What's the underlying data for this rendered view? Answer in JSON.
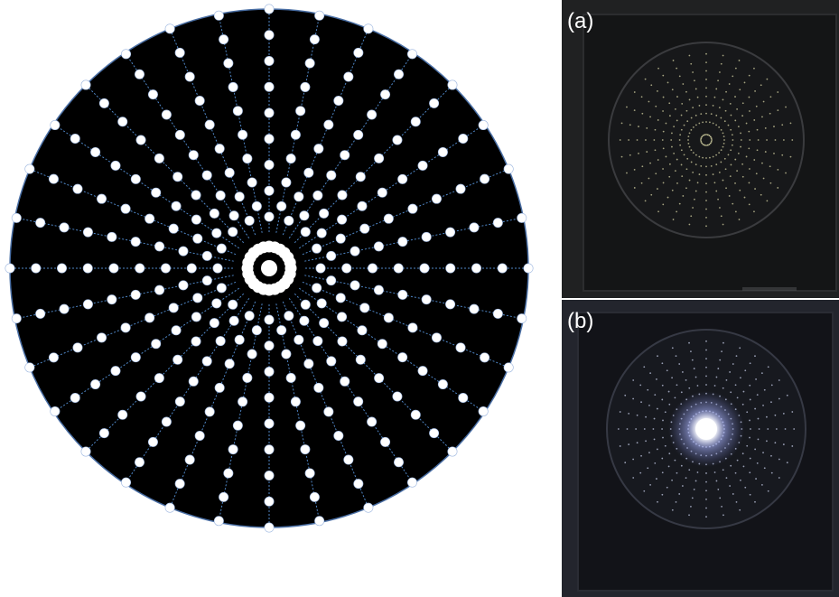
{
  "diagram": {
    "title": "",
    "rays": 32,
    "dots_per_ray": 9,
    "inner_ring_dots": 24,
    "colors": {
      "disc": "#000000",
      "disc_outline": "#4a6fa5",
      "ray_line": "#4f86c6",
      "dot": "#ffffff"
    }
  },
  "photos": [
    {
      "label": "(a)",
      "illumination": "off",
      "colors": {
        "background": "#1e1f20",
        "frame": "#141516",
        "dots": "#c8c69a"
      }
    },
    {
      "label": "(b)",
      "illumination": "on",
      "colors": {
        "background": "#22242c",
        "frame": "#121318",
        "dots": "#b9bfd8",
        "glow": "#ffffff"
      }
    }
  ]
}
